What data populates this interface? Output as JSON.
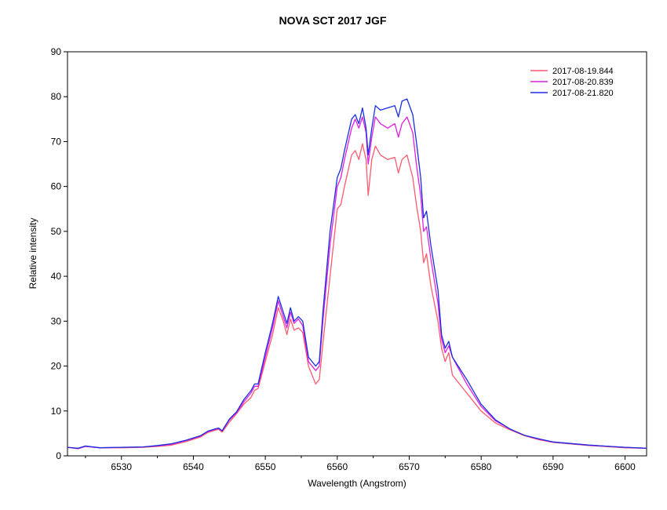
{
  "chart_data": {
    "type": "line",
    "title": "NOVA SCT 2017   JGF",
    "xlabel": "Wavelength (Angstrom)",
    "ylabel": "Relative intensity",
    "xlim": [
      6522.5,
      6603
    ],
    "ylim": [
      0,
      90
    ],
    "xticks": [
      6530,
      6540,
      6550,
      6560,
      6570,
      6580,
      6590,
      6600
    ],
    "yticks": [
      0,
      10,
      20,
      30,
      40,
      50,
      60,
      70,
      80,
      90
    ],
    "grid": false,
    "legend_position": "top-right",
    "series": [
      {
        "name": "2017-08-19.844",
        "color": "#ff5a6e",
        "points": [
          [
            6522.5,
            1.9
          ],
          [
            6524,
            1.6
          ],
          [
            6525,
            2.1
          ],
          [
            6527,
            1.8
          ],
          [
            6530,
            1.8
          ],
          [
            6533,
            1.9
          ],
          [
            6535,
            2.1
          ],
          [
            6537,
            2.4
          ],
          [
            6539,
            3.2
          ],
          [
            6541,
            4.2
          ],
          [
            6542,
            5.2
          ],
          [
            6543,
            5.7
          ],
          [
            6543.5,
            5.9
          ],
          [
            6544,
            5.3
          ],
          [
            6545,
            7.5
          ],
          [
            6546,
            9.4
          ],
          [
            6547,
            11.5
          ],
          [
            6548,
            13.0
          ],
          [
            6548.5,
            14.6
          ],
          [
            6549,
            15.0
          ],
          [
            6550,
            21.0
          ],
          [
            6551,
            27.0
          ],
          [
            6551.8,
            33.0
          ],
          [
            6552.5,
            30.0
          ],
          [
            6553,
            27.0
          ],
          [
            6553.5,
            30.5
          ],
          [
            6554,
            28.0
          ],
          [
            6554.6,
            28.5
          ],
          [
            6555.2,
            27.5
          ],
          [
            6556,
            20.0
          ],
          [
            6557,
            16.0
          ],
          [
            6557.5,
            17.0
          ],
          [
            6558,
            25.0
          ],
          [
            6559,
            40.0
          ],
          [
            6560,
            55.0
          ],
          [
            6560.5,
            56.0
          ],
          [
            6561,
            60.0
          ],
          [
            6562,
            67.0
          ],
          [
            6562.5,
            68.0
          ],
          [
            6563,
            66.0
          ],
          [
            6563.5,
            69.5
          ],
          [
            6564,
            66.0
          ],
          [
            6564.3,
            58.0
          ],
          [
            6564.8,
            66.0
          ],
          [
            6565.3,
            69.0
          ],
          [
            6566,
            67.0
          ],
          [
            6567,
            66.0
          ],
          [
            6568,
            66.5
          ],
          [
            6568.5,
            63.0
          ],
          [
            6569,
            66.0
          ],
          [
            6569.7,
            67.0
          ],
          [
            6570.5,
            62.0
          ],
          [
            6571,
            56.0
          ],
          [
            6571.6,
            50.0
          ],
          [
            6572,
            43.0
          ],
          [
            6572.4,
            45.0
          ],
          [
            6573,
            38.0
          ],
          [
            6574,
            30.0
          ],
          [
            6574.5,
            24.0
          ],
          [
            6575,
            21.0
          ],
          [
            6575.5,
            23.0
          ],
          [
            6576,
            18.0
          ],
          [
            6578,
            14.0
          ],
          [
            6580,
            10.0
          ],
          [
            6582,
            7.3
          ],
          [
            6584,
            5.8
          ],
          [
            6586,
            4.5
          ],
          [
            6588,
            3.6
          ],
          [
            6590,
            3.0
          ],
          [
            6595,
            2.3
          ],
          [
            6600,
            1.8
          ],
          [
            6603,
            1.7
          ]
        ]
      },
      {
        "name": "2017-08-20.839",
        "color": "#e020e0",
        "points": [
          [
            6522.5,
            1.9
          ],
          [
            6524,
            1.6
          ],
          [
            6525,
            2.1
          ],
          [
            6527,
            1.8
          ],
          [
            6530,
            1.9
          ],
          [
            6533,
            2.0
          ],
          [
            6535,
            2.2
          ],
          [
            6537,
            2.6
          ],
          [
            6539,
            3.4
          ],
          [
            6541,
            4.4
          ],
          [
            6542,
            5.4
          ],
          [
            6543,
            5.9
          ],
          [
            6543.5,
            6.1
          ],
          [
            6544,
            5.5
          ],
          [
            6545,
            8.0
          ],
          [
            6546,
            9.6
          ],
          [
            6547,
            12.0
          ],
          [
            6548,
            14.0
          ],
          [
            6548.5,
            15.5
          ],
          [
            6549,
            15.5
          ],
          [
            6550,
            22.0
          ],
          [
            6551,
            28.5
          ],
          [
            6551.8,
            34.5
          ],
          [
            6552.5,
            31.0
          ],
          [
            6553,
            28.5
          ],
          [
            6553.5,
            32.0
          ],
          [
            6554,
            29.5
          ],
          [
            6554.6,
            30.5
          ],
          [
            6555.2,
            29.0
          ],
          [
            6556,
            21.0
          ],
          [
            6557,
            19.0
          ],
          [
            6557.5,
            20.0
          ],
          [
            6558,
            30.0
          ],
          [
            6559,
            47.0
          ],
          [
            6560,
            60.0
          ],
          [
            6560.5,
            62.0
          ],
          [
            6561,
            66.0
          ],
          [
            6562,
            73.0
          ],
          [
            6562.5,
            75.0
          ],
          [
            6563,
            73.0
          ],
          [
            6563.5,
            75.5
          ],
          [
            6564,
            72.0
          ],
          [
            6564.3,
            65.0
          ],
          [
            6564.8,
            71.0
          ],
          [
            6565.3,
            75.5
          ],
          [
            6566,
            74.0
          ],
          [
            6567,
            73.0
          ],
          [
            6568,
            74.0
          ],
          [
            6568.5,
            71.0
          ],
          [
            6569,
            74.0
          ],
          [
            6569.7,
            75.5
          ],
          [
            6570.5,
            72.0
          ],
          [
            6571,
            65.0
          ],
          [
            6571.6,
            58.0
          ],
          [
            6572,
            50.0
          ],
          [
            6572.4,
            51.0
          ],
          [
            6573,
            44.0
          ],
          [
            6574,
            34.0
          ],
          [
            6574.5,
            26.0
          ],
          [
            6575,
            23.0
          ],
          [
            6575.5,
            24.5
          ],
          [
            6576,
            22.0
          ],
          [
            6578,
            16.0
          ],
          [
            6580,
            11.0
          ],
          [
            6582,
            7.8
          ],
          [
            6584,
            6.0
          ],
          [
            6586,
            4.6
          ],
          [
            6588,
            3.7
          ],
          [
            6590,
            3.1
          ],
          [
            6595,
            2.4
          ],
          [
            6600,
            1.9
          ],
          [
            6603,
            1.7
          ]
        ]
      },
      {
        "name": "2017-08-21.820",
        "color": "#1a2ee0",
        "points": [
          [
            6522.5,
            1.9
          ],
          [
            6524,
            1.7
          ],
          [
            6525,
            2.2
          ],
          [
            6527,
            1.8
          ],
          [
            6530,
            1.9
          ],
          [
            6533,
            2.0
          ],
          [
            6535,
            2.3
          ],
          [
            6537,
            2.7
          ],
          [
            6539,
            3.5
          ],
          [
            6541,
            4.5
          ],
          [
            6542,
            5.5
          ],
          [
            6543,
            6.0
          ],
          [
            6543.5,
            6.2
          ],
          [
            6544,
            5.6
          ],
          [
            6545,
            8.2
          ],
          [
            6546,
            9.8
          ],
          [
            6547,
            12.5
          ],
          [
            6548,
            14.5
          ],
          [
            6548.5,
            16.0
          ],
          [
            6549,
            16.0
          ],
          [
            6550,
            23.0
          ],
          [
            6551,
            29.5
          ],
          [
            6551.8,
            35.5
          ],
          [
            6552.5,
            32.0
          ],
          [
            6553,
            29.5
          ],
          [
            6553.5,
            33.0
          ],
          [
            6554,
            30.0
          ],
          [
            6554.6,
            31.0
          ],
          [
            6555.2,
            30.0
          ],
          [
            6556,
            22.0
          ],
          [
            6557,
            20.0
          ],
          [
            6557.5,
            21.0
          ],
          [
            6558,
            32.0
          ],
          [
            6559,
            50.0
          ],
          [
            6560,
            62.0
          ],
          [
            6560.5,
            64.0
          ],
          [
            6561,
            68.0
          ],
          [
            6562,
            75.0
          ],
          [
            6562.5,
            76.0
          ],
          [
            6563,
            74.0
          ],
          [
            6563.5,
            77.5
          ],
          [
            6564,
            73.0
          ],
          [
            6564.3,
            67.0
          ],
          [
            6564.8,
            73.0
          ],
          [
            6565.3,
            78.0
          ],
          [
            6566,
            77.0
          ],
          [
            6567,
            77.5
          ],
          [
            6568,
            78.0
          ],
          [
            6568.5,
            75.5
          ],
          [
            6569,
            79.0
          ],
          [
            6569.7,
            79.5
          ],
          [
            6570.5,
            76.0
          ],
          [
            6571,
            70.0
          ],
          [
            6571.6,
            62.0
          ],
          [
            6572,
            53.0
          ],
          [
            6572.4,
            54.5
          ],
          [
            6573,
            47.0
          ],
          [
            6574,
            37.0
          ],
          [
            6574.5,
            27.0
          ],
          [
            6575,
            24.0
          ],
          [
            6575.5,
            25.5
          ],
          [
            6576,
            22.0
          ],
          [
            6578,
            17.0
          ],
          [
            6580,
            11.5
          ],
          [
            6582,
            8.0
          ],
          [
            6584,
            6.0
          ],
          [
            6586,
            4.6
          ],
          [
            6588,
            3.8
          ],
          [
            6590,
            3.1
          ],
          [
            6595,
            2.4
          ],
          [
            6600,
            1.9
          ],
          [
            6603,
            1.7
          ]
        ]
      }
    ]
  }
}
